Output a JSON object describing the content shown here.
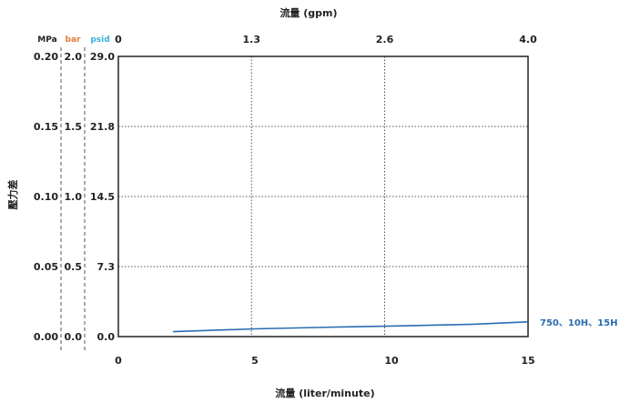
{
  "chart_data": {
    "type": "line",
    "x_bottom": {
      "label": "流量 (liter/minute)",
      "ticks": [
        0,
        5,
        10,
        15
      ],
      "tick_labels": [
        "0",
        "5",
        "10",
        "15"
      ],
      "range": [
        0,
        15
      ]
    },
    "x_top": {
      "label": "流量 (gpm)",
      "ticks": [
        0,
        1.3,
        2.6,
        4.0
      ],
      "tick_labels": [
        "0",
        "1.3",
        "2.6",
        "4.0"
      ],
      "range": [
        0,
        4.0
      ]
    },
    "y": {
      "label": "壓力差",
      "range": [
        0,
        0.2
      ],
      "ticks": [
        0,
        0.05,
        0.1,
        0.15,
        0.2
      ]
    },
    "y_axes": [
      {
        "unit": "MPa",
        "color": "#222222",
        "tick_labels": [
          "0.00",
          "0.05",
          "0.10",
          "0.15",
          "0.20"
        ]
      },
      {
        "unit": "bar",
        "color": "#e07a3a",
        "tick_labels": [
          "0.0",
          "0.5",
          "1.0",
          "1.5",
          "2.0"
        ]
      },
      {
        "unit": "psid",
        "color": "#3ab0d8",
        "tick_labels": [
          "0.0",
          "7.3",
          "14.5",
          "21.8",
          "29.0"
        ]
      }
    ],
    "grid": true,
    "series": [
      {
        "name": "750、10H、15H",
        "color": "#2a6db0",
        "label_color": "#2a6db0",
        "points": [
          [
            2,
            0.0035
          ],
          [
            5,
            0.0055
          ],
          [
            8,
            0.0068
          ],
          [
            10,
            0.0075
          ],
          [
            13,
            0.0088
          ],
          [
            15,
            0.0105
          ]
        ]
      }
    ]
  }
}
